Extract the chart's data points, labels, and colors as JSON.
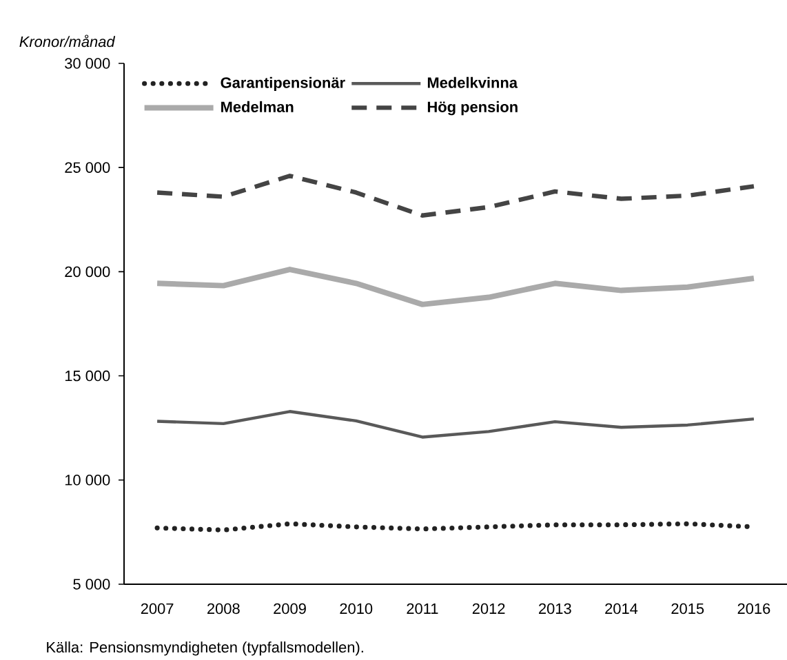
{
  "chart_data": {
    "type": "line",
    "ylabel": "Kronor/månad",
    "annotations": [
      "Källa: Pensionsmyndigheten (typfallsmodellen)."
    ],
    "categories": [
      "2007",
      "2008",
      "2009",
      "2010",
      "2011",
      "2012",
      "2013",
      "2014",
      "2015",
      "2016"
    ],
    "series": [
      {
        "name": "Garantipensionär",
        "color": "#222222",
        "line_style": "dotted",
        "values": [
          7700,
          7600,
          7900,
          7750,
          7650,
          7750,
          7850,
          7850,
          7900,
          7750
        ]
      },
      {
        "name": "Medelkvinna",
        "color": "#595959",
        "line_style": "solid",
        "values": [
          12820,
          12710,
          13290,
          12840,
          12060,
          12330,
          12800,
          12530,
          12640,
          12930
        ]
      },
      {
        "name": "Medelman",
        "color": "#aaaaaa",
        "line_style": "solid",
        "values": [
          19440,
          19330,
          20110,
          19440,
          18430,
          18770,
          19440,
          19100,
          19260,
          19680
        ]
      },
      {
        "name": "Hög pension",
        "color": "#444444",
        "line_style": "dashed",
        "values": [
          23800,
          23600,
          24600,
          23800,
          22700,
          23100,
          23850,
          23500,
          23650,
          24100
        ]
      }
    ],
    "ylim": [
      5000,
      30000
    ],
    "yticks": [
      {
        "value": 5000,
        "label": "5 000"
      },
      {
        "value": 10000,
        "label": "10 000"
      },
      {
        "value": 15000,
        "label": "15 000"
      },
      {
        "value": 20000,
        "label": "20 000"
      },
      {
        "value": 25000,
        "label": "25 000"
      },
      {
        "value": 30000,
        "label": "30 000"
      }
    ],
    "grid": false,
    "legend": "top",
    "marker": "none"
  }
}
